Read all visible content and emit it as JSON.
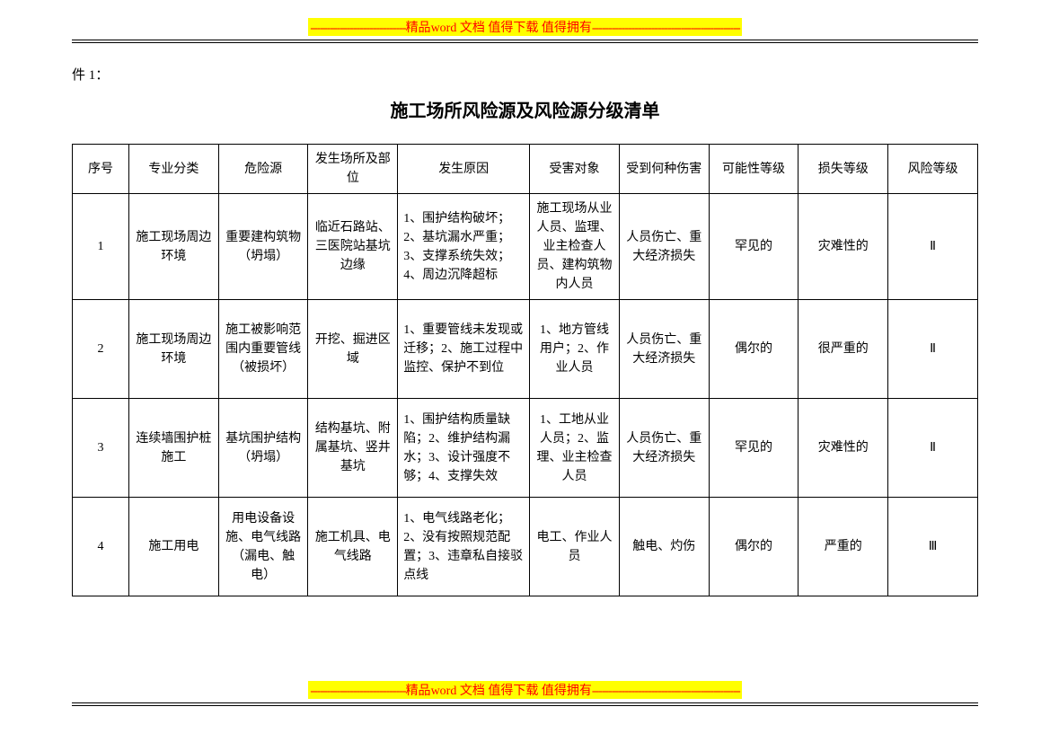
{
  "banner": {
    "dashes_left": "-----------------------------",
    "text_pre": "精品",
    "text_word": "word",
    "text_mid": " 文档  值得下载  值得拥有",
    "dashes_right": "---------------------------------------------"
  },
  "attach_label": "件 1：",
  "title": "施工场所风险源及风险源分级清单",
  "headers": [
    "序号",
    "专业分类",
    "危险源",
    "发生场所及部位",
    "发生原因",
    "受害对象",
    "受到何种伤害",
    "可能性等级",
    "损失等级",
    "风险等级"
  ],
  "rows": [
    {
      "seq": "1",
      "category": "施工现场周边环境",
      "hazard": "重要建构筑物（坍塌）",
      "location": "临近石路站、三医院站基坑边缘",
      "cause": "1、围护结构破坏；2、基坑漏水严重；3、支撑系统失效；4、周边沉降超标",
      "victim": "施工现场从业人员、监理、业主检查人员、建构筑物内人员",
      "harm": "人员伤亡、重大经济损失",
      "likelihood": "罕见的",
      "loss": "灾难性的",
      "risk": "Ⅱ"
    },
    {
      "seq": "2",
      "category": "施工现场周边环境",
      "hazard": "施工被影响范围内重要管线（被损坏）",
      "location": "开挖、掘进区域",
      "cause": "1、重要管线未发现或迁移；2、施工过程中监控、保护不到位",
      "victim": "1、地方管线用户；2、作业人员",
      "harm": "人员伤亡、重大经济损失",
      "likelihood": "偶尔的",
      "loss": "很严重的",
      "risk": "Ⅱ"
    },
    {
      "seq": "3",
      "category": "连续墙围护桩施工",
      "hazard": "基坑围护结构（坍塌）",
      "location": "结构基坑、附属基坑、竖井基坑",
      "cause": "1、围护结构质量缺陷；2、维护结构漏水；3、设计强度不够；4、支撑失效",
      "victim": "1、工地从业人员；2、监理、业主检查人员",
      "harm": "人员伤亡、重大经济损失",
      "likelihood": "罕见的",
      "loss": "灾难性的",
      "risk": "Ⅱ"
    },
    {
      "seq": "4",
      "category": "施工用电",
      "hazard": "用电设备设施、电气线路（漏电、触电）",
      "location": "施工机具、电气线路",
      "cause": "1、电气线路老化；2、没有按照规范配置；3、违章私自接驳点线",
      "victim": "电工、作业人员",
      "harm": "触电、灼伤",
      "likelihood": "偶尔的",
      "loss": "严重的",
      "risk": "Ⅲ"
    }
  ]
}
